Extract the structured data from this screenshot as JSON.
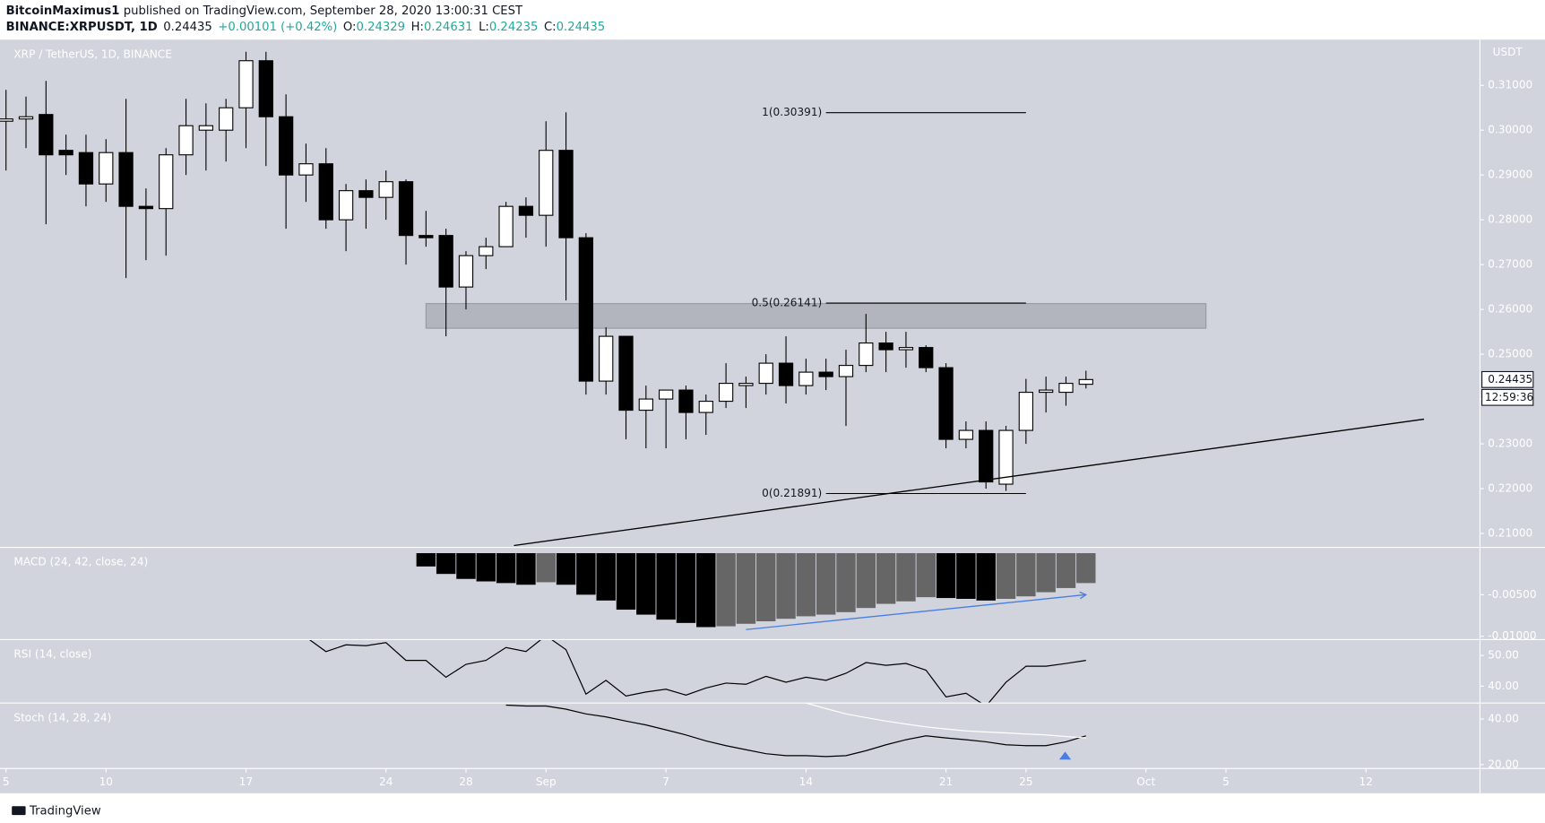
{
  "header": {
    "author": "BitcoinMaximus1",
    "published": "published on TradingView.com, September 28, 2020 13:00:31 CEST",
    "symbol": "BINANCE:XRPUSDT, 1D",
    "last": "0.24435",
    "change": "+0.00101 (+0.42%)",
    "ohlc": [
      [
        "O:",
        "0.24329"
      ],
      [
        "H:",
        "0.24631"
      ],
      [
        "L:",
        "0.24235"
      ],
      [
        "C:",
        "0.24435"
      ]
    ]
  },
  "footer": {
    "brand": "TradingView"
  },
  "chart_data": [
    {
      "type": "candlestick",
      "title": "XRP / TetherUS, 1D, BINANCE",
      "y_unit": "USDT",
      "open": [
        0.302,
        0.3025,
        0.3035,
        0.2955,
        0.295,
        0.288,
        0.295,
        0.283,
        0.2825,
        0.2945,
        0.3,
        0.3,
        0.305,
        0.3155,
        0.303,
        0.29,
        0.2925,
        0.28,
        0.2865,
        0.285,
        0.2885,
        0.2765,
        0.2765,
        0.265,
        0.272,
        0.274,
        0.283,
        0.281,
        0.2955,
        0.276,
        0.244,
        0.254,
        0.2375,
        0.24,
        0.242,
        0.237,
        0.2395,
        0.243,
        0.2435,
        0.248,
        0.243,
        0.246,
        0.245,
        0.2475,
        0.2525,
        0.251,
        0.2515,
        0.247,
        0.231,
        0.233,
        0.221,
        0.233,
        0.2415,
        0.2415,
        0.24329
      ],
      "high": [
        0.309,
        0.3075,
        0.311,
        0.299,
        0.299,
        0.298,
        0.307,
        0.287,
        0.296,
        0.307,
        0.306,
        0.307,
        0.3175,
        0.3175,
        0.308,
        0.297,
        0.296,
        0.288,
        0.289,
        0.291,
        0.289,
        0.282,
        0.278,
        0.273,
        0.276,
        0.284,
        0.285,
        0.302,
        0.304,
        0.277,
        0.256,
        0.254,
        0.243,
        0.242,
        0.243,
        0.241,
        0.248,
        0.245,
        0.25,
        0.254,
        0.249,
        0.249,
        0.251,
        0.259,
        0.255,
        0.255,
        0.252,
        0.248,
        0.235,
        0.235,
        0.234,
        0.2445,
        0.245,
        0.245,
        0.24631
      ],
      "low": [
        0.291,
        0.296,
        0.279,
        0.29,
        0.283,
        0.284,
        0.267,
        0.271,
        0.272,
        0.29,
        0.291,
        0.293,
        0.296,
        0.292,
        0.278,
        0.284,
        0.278,
        0.273,
        0.278,
        0.28,
        0.27,
        0.274,
        0.254,
        0.26,
        0.269,
        0.274,
        0.276,
        0.274,
        0.262,
        0.241,
        0.241,
        0.231,
        0.229,
        0.229,
        0.231,
        0.232,
        0.238,
        0.238,
        0.241,
        0.239,
        0.241,
        0.242,
        0.234,
        0.246,
        0.246,
        0.247,
        0.246,
        0.229,
        0.229,
        0.22,
        0.2195,
        0.23,
        0.237,
        0.2385,
        0.24235
      ],
      "close": [
        0.3025,
        0.303,
        0.2945,
        0.2945,
        0.288,
        0.295,
        0.283,
        0.2825,
        0.2945,
        0.301,
        0.301,
        0.305,
        0.3155,
        0.303,
        0.29,
        0.2925,
        0.28,
        0.2865,
        0.285,
        0.2885,
        0.2765,
        0.276,
        0.265,
        0.272,
        0.274,
        0.283,
        0.281,
        0.2955,
        0.276,
        0.244,
        0.254,
        0.2375,
        0.24,
        0.242,
        0.237,
        0.2395,
        0.2435,
        0.2435,
        0.248,
        0.243,
        0.246,
        0.245,
        0.2475,
        0.2525,
        0.251,
        0.2515,
        0.247,
        0.231,
        0.233,
        0.2215,
        0.233,
        0.2415,
        0.242,
        0.2435,
        0.24435
      ],
      "up_color": "#ffffff",
      "down_color": "#000000",
      "ylim": [
        0.2069,
        0.3202
      ],
      "yticks": [
        {
          "value": 0.21,
          "label": "0.21000"
        },
        {
          "value": 0.22,
          "label": "0.22000"
        },
        {
          "value": 0.23,
          "label": "0.23000"
        },
        {
          "value": 0.24,
          "label": "0.24000"
        },
        {
          "value": 0.25,
          "label": "0.25000"
        },
        {
          "value": 0.26,
          "label": "0.26000"
        },
        {
          "value": 0.27,
          "label": "0.27000"
        },
        {
          "value": 0.28,
          "label": "0.28000"
        },
        {
          "value": 0.29,
          "label": "0.29000"
        },
        {
          "value": 0.3,
          "label": "0.30000"
        },
        {
          "value": 0.31,
          "label": "0.31000"
        }
      ],
      "xlim": [
        -0.3,
        73.7
      ],
      "xticks": [
        {
          "value": 0,
          "label": "5"
        },
        {
          "value": 5,
          "label": "10"
        },
        {
          "value": 12,
          "label": "17"
        },
        {
          "value": 19,
          "label": "24"
        },
        {
          "value": 23,
          "label": "28"
        },
        {
          "value": 27,
          "label": "Sep"
        },
        {
          "value": 33,
          "label": "7"
        },
        {
          "value": 40,
          "label": "14"
        },
        {
          "value": 47,
          "label": "21"
        },
        {
          "value": 51,
          "label": "25"
        },
        {
          "value": 57,
          "label": "Oct"
        },
        {
          "value": 61,
          "label": "5"
        },
        {
          "value": 68,
          "label": "12"
        }
      ],
      "last_price": {
        "value": 0.24435,
        "label": "0.24435"
      },
      "countdown": "12:59:36",
      "fib_x": [
        41,
        51
      ],
      "fib_levels": [
        {
          "value": 0.30391,
          "label": "1(0.30391)"
        },
        {
          "value": 0.26141,
          "label": "0.5(0.26141)"
        },
        {
          "value": 0.21891,
          "label": "0(0.21891)"
        }
      ],
      "zone": {
        "x": [
          21,
          60
        ],
        "y": [
          0.2558,
          0.2613
        ],
        "color": "#b2b5bd"
      },
      "trendline": {
        "x": [
          25.4,
          70.9
        ],
        "y": [
          0.2073,
          0.2355
        ],
        "color": "#000000"
      }
    },
    {
      "type": "bar",
      "title": "MACD (24, 42, close, 24)",
      "values": [
        null,
        null,
        null,
        null,
        null,
        null,
        null,
        null,
        null,
        null,
        null,
        null,
        null,
        null,
        null,
        null,
        null,
        null,
        null,
        null,
        null,
        -0.0016,
        -0.0025,
        -0.0031,
        -0.0034,
        -0.0036,
        -0.0038,
        -0.0035,
        -0.0038,
        -0.005,
        -0.0057,
        -0.0068,
        -0.0074,
        -0.008,
        -0.0084,
        -0.0089,
        -0.0088,
        -0.0085,
        -0.0082,
        -0.0079,
        -0.0076,
        -0.0074,
        -0.0071,
        -0.0066,
        -0.0061,
        -0.0058,
        -0.0053,
        -0.0054,
        -0.0055,
        -0.0057,
        -0.0055,
        -0.0052,
        -0.0047,
        -0.0042,
        -0.0036
      ],
      "falling_color": "#000000",
      "rising_color": "#666666",
      "ylim": [
        -0.0104,
        0.0007
      ],
      "yticks": [
        {
          "value": -0.005,
          "label": "-0.00500"
        },
        {
          "value": -0.01,
          "label": "-0.01000"
        }
      ],
      "trend_arrow": {
        "x": [
          37,
          54
        ],
        "y": [
          -0.0092,
          -0.005
        ],
        "color": "#4a7de2"
      }
    },
    {
      "type": "line",
      "title": "RSI (14, close)",
      "series": [
        {
          "color": "#000000",
          "values": [
            null,
            null,
            null,
            null,
            null,
            null,
            null,
            null,
            null,
            null,
            null,
            null,
            null,
            null,
            null,
            56.0,
            51.3,
            53.5,
            53.2,
            54.2,
            48.4,
            48.4,
            42.9,
            47.1,
            48.4,
            52.6,
            51.3,
            56.5,
            51.9,
            37.4,
            41.9,
            36.8,
            38.1,
            39.0,
            37.1,
            39.4,
            41.0,
            40.6,
            43.2,
            41.3,
            42.9,
            41.9,
            44.2,
            47.7,
            46.8,
            47.4,
            45.2,
            36.5,
            37.7,
            33.5,
            41.3,
            46.5,
            46.5,
            47.4,
            48.4
          ]
        }
      ],
      "ylim": [
        34.5,
        55.2
      ],
      "yticks": [
        {
          "value": 50,
          "label": "50.00"
        },
        {
          "value": 40,
          "label": "40.00"
        }
      ]
    },
    {
      "type": "line",
      "title": "Stoch (14, 28, 24)",
      "series": [
        {
          "color": "#000000",
          "values": [
            null,
            null,
            null,
            null,
            null,
            null,
            null,
            null,
            null,
            null,
            null,
            null,
            null,
            null,
            null,
            null,
            null,
            null,
            null,
            null,
            null,
            null,
            null,
            null,
            null,
            46.1,
            45.7,
            45.7,
            44.3,
            42.2,
            40.9,
            39.1,
            37.4,
            35.2,
            33.0,
            30.4,
            28.3,
            26.5,
            24.8,
            23.9,
            23.9,
            23.5,
            23.9,
            26.1,
            28.7,
            30.9,
            32.6,
            31.7,
            30.9,
            30.0,
            28.7,
            28.3,
            28.3,
            30.0,
            32.6
          ]
        },
        {
          "color": "#ffffff",
          "values": [
            null,
            null,
            null,
            null,
            null,
            null,
            null,
            null,
            null,
            null,
            null,
            null,
            null,
            null,
            null,
            null,
            null,
            null,
            null,
            null,
            null,
            null,
            null,
            null,
            null,
            null,
            null,
            null,
            null,
            null,
            null,
            null,
            null,
            null,
            null,
            null,
            null,
            null,
            null,
            null,
            47.0,
            44.5,
            42.2,
            40.6,
            39.1,
            37.8,
            36.5,
            35.6,
            34.8,
            34.3,
            33.9,
            33.4,
            33.0,
            32.3,
            31.7
          ]
        }
      ],
      "ylim": [
        18.3,
        47.0
      ],
      "yticks": [
        {
          "value": 40,
          "label": "40.00"
        },
        {
          "value": 20,
          "label": "20.00"
        }
      ]
    }
  ]
}
